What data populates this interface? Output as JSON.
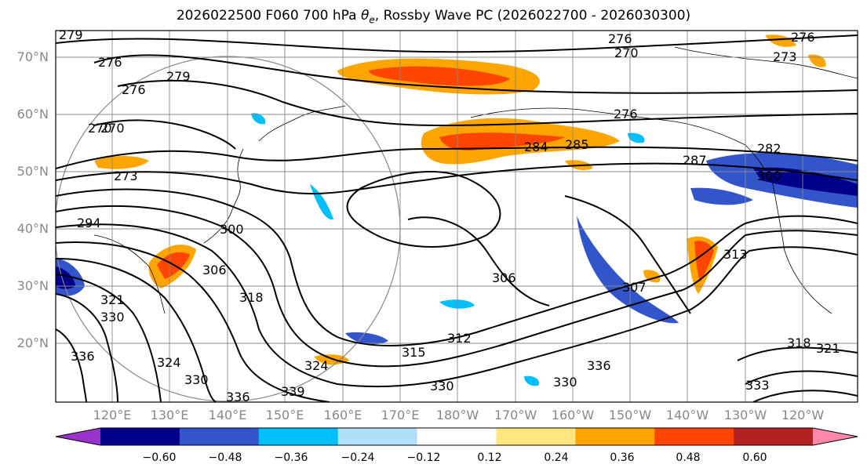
{
  "title": {
    "prefix": "2026022500 F060 700 hPa ",
    "var_symbol": "θ",
    "var_subscript": "e",
    "suffix": ", Rossby Wave PC (2026022700 - 2026030300)"
  },
  "lat_labels": [
    "70°N",
    "60°N",
    "50°N",
    "40°N",
    "30°N",
    "20°N"
  ],
  "lon_labels": [
    "120°E",
    "130°E",
    "140°E",
    "150°E",
    "160°E",
    "170°E",
    "180°W",
    "170°W",
    "160°W",
    "150°W",
    "140°W",
    "130°W",
    "120°W"
  ],
  "contour_labels": [
    "279",
    "276",
    "270",
    "276",
    "279",
    "276",
    "270",
    "273",
    "276",
    "276",
    "270",
    "273",
    "285",
    "284",
    "282",
    "287",
    "300",
    "294",
    "300",
    "306",
    "313",
    "307",
    "306",
    "318",
    "321",
    "330",
    "315",
    "312",
    "324",
    "324",
    "330",
    "336",
    "339",
    "330",
    "336",
    "321",
    "318",
    "333",
    "330",
    "336"
  ],
  "colorbar": {
    "colors": [
      "#9a33cc",
      "#00008b",
      "#3355cc",
      "#00bfff",
      "#b0e0f8",
      "#ffffff",
      "#ffe680",
      "#ffa500",
      "#ff4500",
      "#b22222",
      "#ff88aa"
    ],
    "ticks": [
      "−0.60",
      "−0.48",
      "−0.36",
      "−0.24",
      "−0.12",
      "0.12",
      "0.24",
      "0.36",
      "0.48",
      "0.60"
    ]
  }
}
